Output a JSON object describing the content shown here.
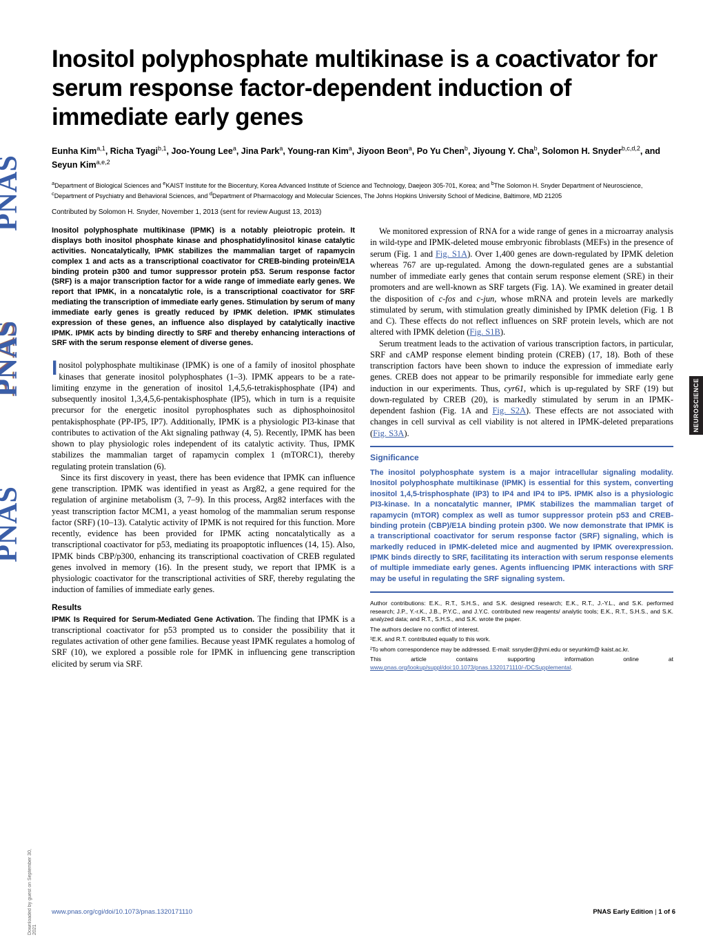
{
  "journal": {
    "logo_text": "PNAS",
    "logo_colors": [
      "#d6b24a",
      "#6b4a8c",
      "#3a5ea8",
      "#b03a3a",
      "#3a8c5a"
    ],
    "section_tab": "NEUROSCIENCE",
    "tab_bg": "#231f20"
  },
  "title": "Inositol polyphosphate multikinase is a coactivator for serum response factor-dependent induction of immediate early genes",
  "authors_html": "Eunha Kim<sup>a,1</sup>, Richa Tyagi<sup>b,1</sup>, Joo-Young Lee<sup>a</sup>, Jina Park<sup>a</sup>, Young-ran Kim<sup>a</sup>, Jiyoon Beon<sup>a</sup>, Po Yu Chen<sup>b</sup>, Jiyoung Y. Cha<sup>b</sup>, Solomon H. Snyder<sup>b,c,d,2</sup>, and Seyun Kim<sup>a,e,2</sup>",
  "affiliations": "<sup>a</sup>Department of Biological Sciences and <sup>e</sup>KAIST Institute for the Biocentury, Korea Advanced Institute of Science and Technology, Daejeon 305-701, Korea; and <sup>b</sup>The Solomon H. Snyder Department of Neuroscience, <sup>c</sup>Department of Psychiatry and Behavioral Sciences, and <sup>d</sup>Department of Pharmacology and Molecular Sciences, The Johns Hopkins University School of Medicine, Baltimore, MD 21205",
  "contributed": "Contributed by Solomon H. Snyder, November 1, 2013 (sent for review August 13, 2013)",
  "abstract": "Inositol polyphosphate multikinase (IPMK) is a notably pleiotropic protein. It displays both inositol phosphate kinase and phosphatidylinositol kinase catalytic activities. Noncatalytically, IPMK stabilizes the mammalian target of rapamycin complex 1 and acts as a transcriptional coactivator for CREB-binding protein/E1A binding protein p300 and tumor suppressor protein p53. Serum response factor (SRF) is a major transcription factor for a wide range of immediate early genes. We report that IPMK, in a noncatalytic role, is a transcriptional coactivator for SRF mediating the transcription of immediate early genes. Stimulation by serum of many immediate early genes is greatly reduced by IPMK deletion. IPMK stimulates expression of these genes, an influence also displayed by catalytically inactive IPMK. IPMK acts by binding directly to SRF and thereby enhancing interactions of SRF with the serum response element of diverse genes.",
  "col1": {
    "intro_first": "nositol polyphosphate multikinase (IPMK) is one of a family of inositol phosphate kinases that generate inositol polyphosphates (1–3). IPMK appears to be a rate-limiting enzyme in the generation of inositol 1,4,5,6-tetrakisphosphate (IP4) and subsequently inositol 1,3,4,5,6-pentakisphosphate (IP5), which in turn is a requisite precursor for the energetic inositol pyrophosphates such as diphosphoinositol pentakisphosphate (PP-IP5, IP7). Additionally, IPMK is a physiologic PI3-kinase that contributes to activation of the Akt signaling pathway (4, 5). Recently, IPMK has been shown to play physiologic roles independent of its catalytic activity. Thus, IPMK stabilizes the mammalian target of rapamycin complex 1 (mTORC1), thereby regulating protein translation (6).",
    "para2": "Since its first discovery in yeast, there has been evidence that IPMK can influence gene transcription. IPMK was identified in yeast as Arg82, a gene required for the regulation of arginine metabolism (3, 7–9). In this process, Arg82 interfaces with the yeast transcription factor MCM1, a yeast homolog of the mammalian serum response factor (SRF) (10–13). Catalytic activity of IPMK is not required for this function. More recently, evidence has been provided for IPMK acting noncatalytically as a transcriptional coactivator for p53, mediating its proapoptotic influences (14, 15). Also, IPMK binds CBP/p300, enhancing its transcriptional coactivation of CREB regulated genes involved in memory (16). In the present study, we report that IPMK is a physiologic coactivator for the transcriptional activities of SRF, thereby regulating the induction of families of immediate early genes.",
    "results_head": "Results",
    "results_sub": "IPMK Is Required for Serum-Mediated Gene Activation.",
    "results_text": "The finding that IPMK is a transcriptional coactivator for p53 prompted us to consider the possibility that it regulates activation of other gene families. Because yeast IPMK regulates a homolog of SRF (10), we explored a possible role for IPMK in influencing gene transcription elicited by serum via SRF."
  },
  "col2": {
    "para1_a": "We monitored expression of RNA for a wide range of genes in a microarray analysis in wild-type and IPMK-deleted mouse embryonic fibroblasts (MEFs) in the presence of serum (Fig. 1 and ",
    "para1_link1": "Fig. S1A",
    "para1_b": "). Over 1,400 genes are down-regulated by IPMK deletion whereas 767 are up-regulated. Among the down-regulated genes are a substantial number of immediate early genes that contain serum response element (SRE) in their promoters and are well-known as SRF targets (Fig. 1A). We examined in greater detail the disposition of ",
    "para1_i1": "c-fos",
    "para1_c": " and ",
    "para1_i2": "c-jun",
    "para1_d": ", whose mRNA and protein levels are markedly stimulated by serum, with stimulation greatly diminished by IPMK deletion (Fig. 1 B and C). These effects do not reflect influences on SRF protein levels, which are not altered with IPMK deletion (",
    "para1_link2": "Fig. S1B",
    "para1_e": ").",
    "para2_a": "Serum treatment leads to the activation of various transcription factors, in particular, SRF and cAMP response element binding protein (CREB) (17, 18). Both of these transcription factors have been shown to induce the expression of immediate early genes. CREB does not appear to be primarily responsible for immediate early gene induction in our experiments. Thus, ",
    "para2_i1": "cyr61",
    "para2_b": ", which is up-regulated by SRF (19) but down-regulated by CREB (20), is markedly stimulated by serum in an IPMK-dependent fashion (Fig. 1A and ",
    "para2_link1": "Fig. S2A",
    "para2_c": "). These effects are not associated with changes in cell survival as cell viability is not altered in IPMK-deleted preparations (",
    "para2_link2": "Fig. S3A",
    "para2_d": ")."
  },
  "significance": {
    "title": "Significance",
    "text": "The inositol polyphosphate system is a major intracellular signaling modality. Inositol polyphosphate multikinase (IPMK) is essential for this system, converting inositol 1,4,5-trisphosphate (IP3) to IP4 and IP4 to IP5. IPMK also is a physiologic PI3-kinase. In a noncatalytic manner, IPMK stabilizes the mammalian target of rapamycin (mTOR) complex as well as tumor suppressor protein p53 and CREB-binding protein (CBP)/E1A binding protein p300. We now demonstrate that IPMK is a transcriptional coactivator for serum response factor (SRF) signaling, which is markedly reduced in IPMK-deleted mice and augmented by IPMK overexpression. IPMK binds directly to SRF, facilitating its interaction with serum response elements of multiple immediate early genes. Agents influencing IPMK interactions with SRF may be useful in regulating the SRF signaling system."
  },
  "footer_notes": {
    "contributions": "Author contributions: E.K., R.T., S.H.S., and S.K. designed research; E.K., R.T., J.-Y.L., and S.K. performed research; J.P., Y.-r.K., J.B., P.Y.C., and J.Y.C. contributed new reagents/ analytic tools; E.K., R.T., S.H.S., and S.K. analyzed data; and R.T., S.H.S., and S.K. wrote the paper.",
    "conflict": "The authors declare no conflict of interest.",
    "equal": "¹E.K. and R.T. contributed equally to this work.",
    "correspondence": "²To whom correspondence may be addressed. E-mail: ssnyder@jhmi.edu or seyunkim@ kaist.ac.kr.",
    "supplemental_a": "This article contains supporting information online at ",
    "supplemental_link": "www.pnas.org/lookup/suppl/doi:10.1073/pnas.1320171110/-/DCSupplemental",
    "supplemental_b": "."
  },
  "page_footer": {
    "doi": "www.pnas.org/cgi/doi/10.1073/pnas.1320171110",
    "right": "PNAS Early Edition | 1 of 6"
  },
  "download_note": "Downloaded by guest on September 30, 2021",
  "colors": {
    "link": "#3a5ea8",
    "significance_border": "#3a5ea8",
    "text": "#000000",
    "bg": "#ffffff"
  },
  "typography": {
    "title_size": 35,
    "body_size": 12.5,
    "abstract_size": 11,
    "footnote_size": 8.5
  }
}
